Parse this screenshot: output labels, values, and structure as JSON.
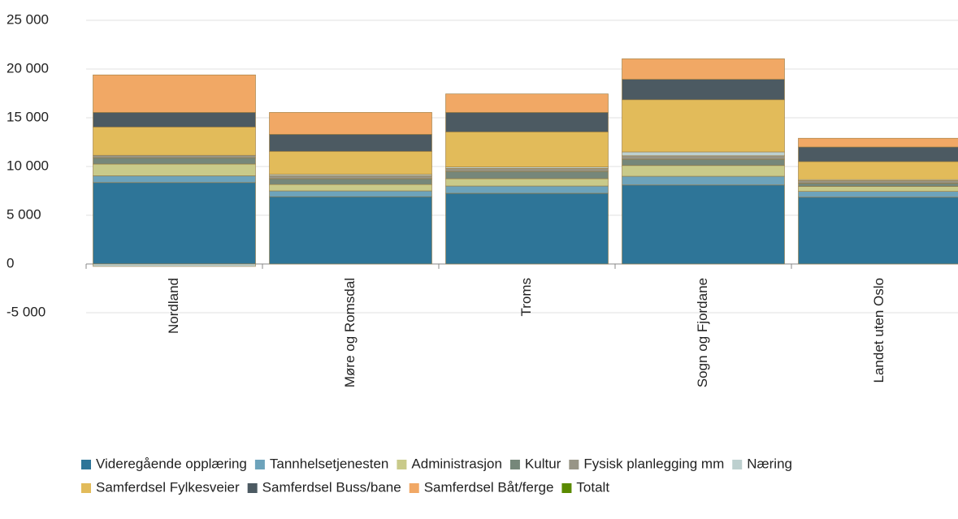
{
  "chart_data": {
    "type": "stacked_bar",
    "categories": [
      "Nordland",
      "Møre og Romsdal",
      "Troms",
      "Sogn og Fjordane",
      "Landet uten Oslo"
    ],
    "series": [
      {
        "name": "Videregående opplæring",
        "color": "#2e7598",
        "values": [
          8350,
          6900,
          7250,
          8100,
          6850
        ]
      },
      {
        "name": "Tannhelsetjenesten",
        "color": "#6da3bb",
        "values": [
          700,
          600,
          750,
          900,
          600
        ]
      },
      {
        "name": "Administrasjon",
        "color": "#c9ca8a",
        "values": [
          1200,
          650,
          750,
          1100,
          500
        ]
      },
      {
        "name": "Kultur",
        "color": "#76877a",
        "values": [
          650,
          600,
          750,
          650,
          350
        ]
      },
      {
        "name": "Fysisk planlegging mm",
        "color": "#989586",
        "values": [
          250,
          300,
          300,
          350,
          250
        ]
      },
      {
        "name": "Næring",
        "color": "#bdd0cf",
        "values": [
          -250,
          150,
          150,
          400,
          100
        ]
      },
      {
        "name": "Samferdsel Fylkesveier",
        "color": "#e2bb5a",
        "values": [
          2900,
          2350,
          3600,
          5350,
          1850
        ]
      },
      {
        "name": "Samferdsel Buss/bane",
        "color": "#4c5a62",
        "values": [
          1500,
          1750,
          2000,
          2100,
          1500
        ]
      },
      {
        "name": "Samferdsel Båt/ferge",
        "color": "#f1a865",
        "values": [
          3850,
          2250,
          1900,
          2100,
          900
        ]
      },
      {
        "name": "Totalt",
        "color": "#5a8a00",
        "values": [
          null,
          null,
          null,
          null,
          null
        ]
      }
    ],
    "ylim": [
      -5000,
      25000
    ],
    "yticks": [
      {
        "value": 25000,
        "label": "25 000"
      },
      {
        "value": 20000,
        "label": "20 000"
      },
      {
        "value": 15000,
        "label": "15 000"
      },
      {
        "value": 10000,
        "label": "10 000"
      },
      {
        "value": 5000,
        "label": "5 000"
      },
      0,
      {
        "value": -5000,
        "label": "-5 000"
      }
    ],
    "grid": true,
    "legend": "bottom"
  }
}
